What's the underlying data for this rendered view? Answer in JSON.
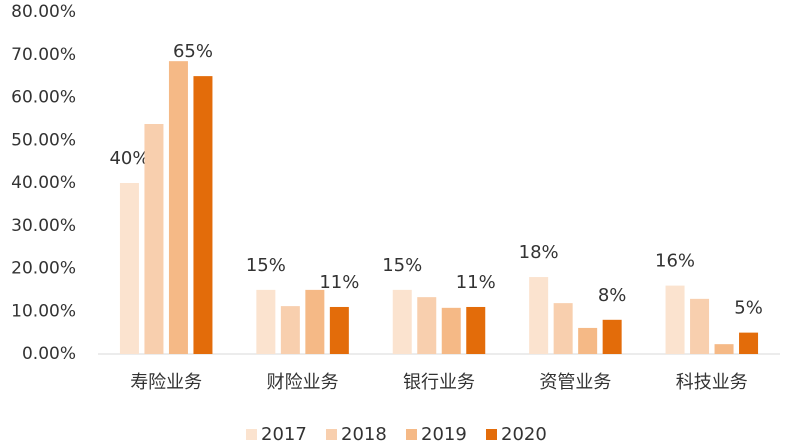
{
  "chart_data": {
    "type": "bar",
    "categories": [
      "寿险业务",
      "财险业务",
      "银行业务",
      "资管业务",
      "科技业务"
    ],
    "series": [
      {
        "name": "2017",
        "color": "#fbe3cf",
        "values": [
          40,
          15,
          15,
          18,
          16
        ],
        "value_labels": [
          "40%",
          "15%",
          "15%",
          "18%",
          "16%"
        ]
      },
      {
        "name": "2018",
        "color": "#f8cfae",
        "values": [
          53.8,
          11.2,
          13.3,
          11.9,
          12.9
        ]
      },
      {
        "name": "2019",
        "color": "#f5b986",
        "values": [
          68.5,
          15,
          10.8,
          6.1,
          2.3
        ]
      },
      {
        "name": "2020",
        "color": "#e36c0a",
        "values": [
          65,
          11,
          11,
          8,
          5
        ],
        "value_labels": [
          "65%",
          "11%",
          "11%",
          "8%",
          "5%"
        ]
      }
    ],
    "ylim": [
      0,
      80
    ],
    "yticks": [
      {
        "value": 0,
        "label": "0.00%"
      },
      {
        "value": 10,
        "label": "10.00%"
      },
      {
        "value": 20,
        "label": "20.00%"
      },
      {
        "value": 30,
        "label": "30.00%"
      },
      {
        "value": 40,
        "label": "40.00%"
      },
      {
        "value": 50,
        "label": "50.00%"
      },
      {
        "value": 60,
        "label": "60.00%"
      },
      {
        "value": 70,
        "label": "70.00%"
      },
      {
        "value": 80,
        "label": "80.00%"
      }
    ],
    "legend": "bottom"
  }
}
